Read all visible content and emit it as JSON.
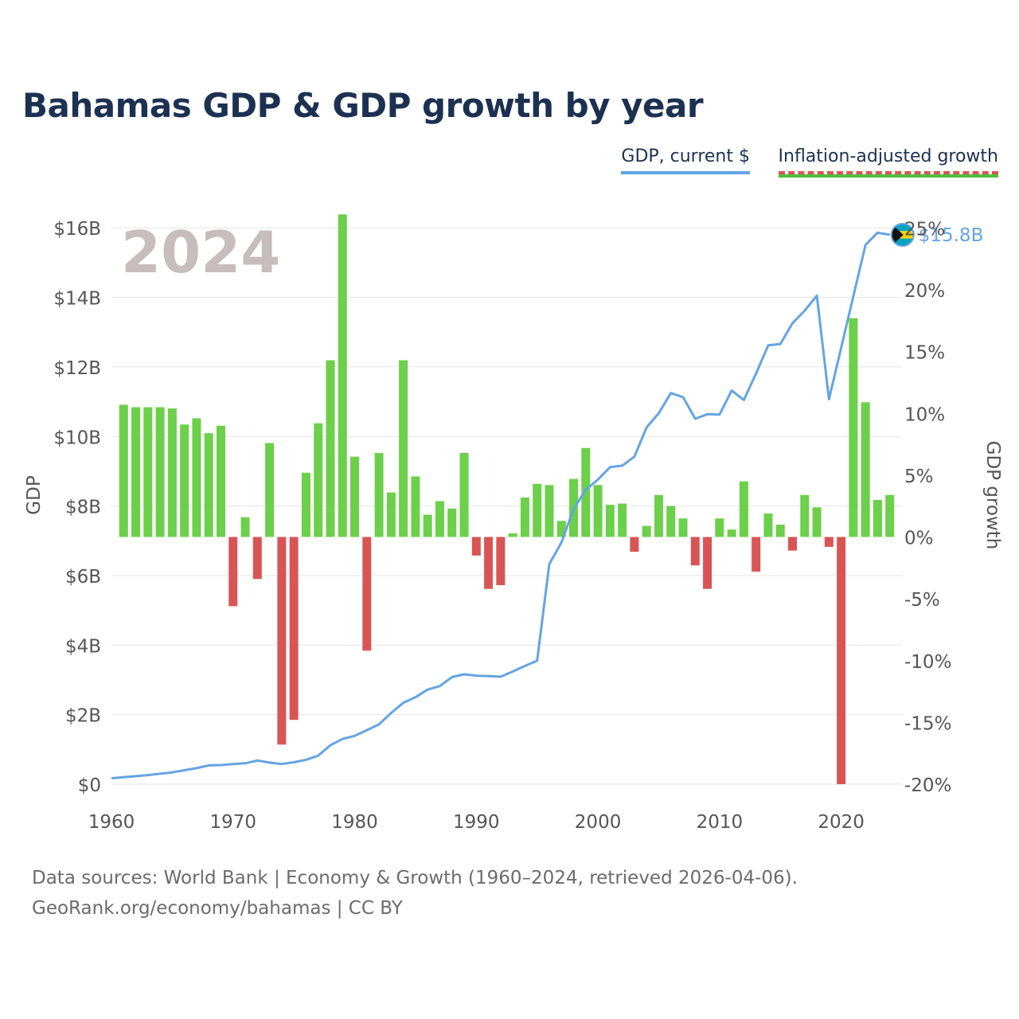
{
  "title": "Bahamas GDP & GDP growth by year",
  "legend": {
    "gdp_label": "GDP, current $",
    "growth_label": "Inflation-adjusted growth"
  },
  "colors": {
    "title": "#1c3152",
    "gdp_line": "#64a4e4",
    "growth_positive": "#6cd04a",
    "growth_negative": "#d95555",
    "year_watermark": "#c7bdbd",
    "axis_text": "#555555"
  },
  "footer": {
    "sources": "Data sources: World Bank | Economy & Growth (1960–2024, retrieved 2026-04-06).",
    "credit": "GeoRank.org/economy/bahamas | CC BY"
  },
  "chart_data": {
    "type": "bar+line",
    "title": "Bahamas GDP & GDP growth by year",
    "year_watermark": "2024",
    "xlabel": "",
    "ylabel_left": "GDP",
    "ylabel_right": "GDP growth",
    "x_ticks": [
      "1960",
      "1970",
      "1980",
      "1990",
      "2000",
      "2010",
      "2020"
    ],
    "x_tick_values": [
      1960,
      1970,
      1980,
      1990,
      2000,
      2010,
      2020
    ],
    "xlim": [
      1960,
      2025
    ],
    "y_left_ticks": [
      "$0",
      "$2B",
      "$4B",
      "$6B",
      "$8B",
      "$10B",
      "$12B",
      "$14B",
      "$16B"
    ],
    "y_left_tick_values": [
      0,
      2,
      4,
      6,
      8,
      10,
      12,
      14,
      16
    ],
    "ylim_left": [
      0,
      16.6
    ],
    "y_right_ticks": [
      "-20%",
      "-15%",
      "-10%",
      "-5%",
      "0%",
      "5%",
      "10%",
      "15%",
      "20%",
      "25%"
    ],
    "y_right_tick_values": [
      -20,
      -15,
      -10,
      -5,
      0,
      5,
      10,
      15,
      20,
      25
    ],
    "ylim_right": [
      -20,
      26.7
    ],
    "end_label": "$15.8B",
    "years": [
      1960,
      1961,
      1962,
      1963,
      1964,
      1965,
      1966,
      1967,
      1968,
      1969,
      1970,
      1971,
      1972,
      1973,
      1974,
      1975,
      1976,
      1977,
      1978,
      1979,
      1980,
      1981,
      1982,
      1983,
      1984,
      1985,
      1986,
      1987,
      1988,
      1989,
      1990,
      1991,
      1992,
      1993,
      1994,
      1995,
      1996,
      1997,
      1998,
      1999,
      2000,
      2001,
      2002,
      2003,
      2004,
      2005,
      2006,
      2007,
      2008,
      2009,
      2010,
      2011,
      2012,
      2013,
      2014,
      2015,
      2016,
      2017,
      2018,
      2019,
      2020,
      2021,
      2022,
      2023,
      2024
    ],
    "series": [
      {
        "name": "GDP, current $ (billions)",
        "type": "line",
        "values": [
          0.17,
          0.2,
          0.23,
          0.26,
          0.3,
          0.34,
          0.4,
          0.46,
          0.54,
          0.55,
          0.58,
          0.6,
          0.68,
          0.62,
          0.58,
          0.63,
          0.7,
          0.82,
          1.12,
          1.3,
          1.39,
          1.55,
          1.72,
          2.05,
          2.34,
          2.5,
          2.72,
          2.82,
          3.08,
          3.16,
          3.12,
          3.11,
          3.09,
          3.24,
          3.4,
          3.55,
          6.33,
          6.95,
          7.91,
          8.47,
          8.76,
          9.12,
          9.16,
          9.42,
          10.26,
          10.67,
          11.25,
          11.13,
          10.51,
          10.64,
          10.63,
          11.32,
          11.05,
          11.81,
          12.62,
          12.66,
          13.26,
          13.62,
          14.05,
          11.07,
          12.55,
          14.03,
          15.51,
          15.86,
          15.8
        ]
      },
      {
        "name": "Inflation-adjusted growth (%)",
        "type": "bar",
        "values": [
          10.7,
          10.5,
          10.5,
          10.5,
          10.4,
          9.1,
          9.6,
          8.4,
          9.0,
          -5.6,
          1.6,
          -3.4,
          7.6,
          -16.8,
          -14.8,
          5.2,
          9.2,
          14.3,
          26.1,
          6.5,
          -9.2,
          6.8,
          3.6,
          14.3,
          4.9,
          1.8,
          2.9,
          2.3,
          6.8,
          -1.5,
          -4.2,
          -3.9,
          0.3,
          3.2,
          4.3,
          4.2,
          1.3,
          4.7,
          7.2,
          4.2,
          2.6,
          2.7,
          -1.2,
          0.9,
          3.4,
          2.5,
          1.5,
          -2.3,
          -4.2,
          1.5,
          0.6,
          4.5,
          -2.8,
          1.9,
          1.0,
          -1.1,
          3.4,
          2.4,
          -0.8,
          -20.0,
          17.7,
          10.9,
          3.0,
          3.4
        ]
      }
    ],
    "bar_years": [
      1961,
      1962,
      1963,
      1964,
      1965,
      1966,
      1967,
      1968,
      1969,
      1970,
      1971,
      1972,
      1973,
      1974,
      1975,
      1976,
      1977,
      1978,
      1979,
      1980,
      1981,
      1982,
      1983,
      1984,
      1985,
      1986,
      1987,
      1988,
      1989,
      1990,
      1991,
      1992,
      1993,
      1994,
      1995,
      1996,
      1997,
      1998,
      1999,
      2000,
      2001,
      2002,
      2003,
      2004,
      2005,
      2006,
      2007,
      2008,
      2009,
      2010,
      2011,
      2012,
      2013,
      2014,
      2015,
      2016,
      2017,
      2018,
      2019,
      2020,
      2021,
      2022,
      2023,
      2024
    ]
  }
}
